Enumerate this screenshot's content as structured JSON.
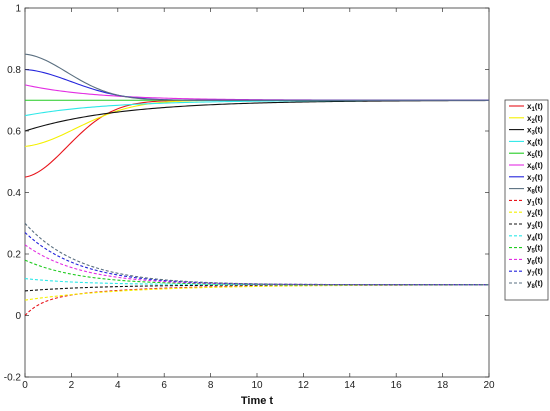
{
  "chart_data": {
    "type": "line",
    "title": "",
    "xlabel": "Time t",
    "ylabel": "",
    "xlim": [
      0,
      20
    ],
    "ylim": [
      -0.2,
      1
    ],
    "xticks": [
      "0",
      "2",
      "4",
      "6",
      "8",
      "10",
      "12",
      "14",
      "16",
      "18",
      "20"
    ],
    "yticks": [
      "-0.2",
      "0",
      "0.2",
      "0.4",
      "0.6",
      "0.8",
      "1"
    ],
    "grid": false,
    "legend_position": "right",
    "series": [
      {
        "label": "x",
        "sub": "1",
        "suffix": "(t)",
        "color": "#e8141b",
        "dash": false,
        "start": 0.45,
        "end": 0.7,
        "shape": "sigmoid",
        "k": 0.5
      },
      {
        "label": "x",
        "sub": "2",
        "suffix": "(t)",
        "color": "#f4f000",
        "dash": false,
        "start": 0.55,
        "end": 0.7,
        "shape": "sigmoid",
        "k": 0.4
      },
      {
        "label": "x",
        "sub": "3",
        "suffix": "(t)",
        "color": "#111111",
        "dash": false,
        "start": 0.6,
        "end": 0.7,
        "shape": "exp",
        "k": 0.24
      },
      {
        "label": "x",
        "sub": "4",
        "suffix": "(t)",
        "color": "#2ee8e8",
        "dash": false,
        "start": 0.65,
        "end": 0.7,
        "shape": "exp",
        "k": 0.28
      },
      {
        "label": "x",
        "sub": "5",
        "suffix": "(t)",
        "color": "#22cc22",
        "dash": false,
        "start": 0.7,
        "end": 0.7,
        "shape": "exp",
        "k": 0.3
      },
      {
        "label": "x",
        "sub": "6",
        "suffix": "(t)",
        "color": "#e32ee3",
        "dash": false,
        "start": 0.75,
        "end": 0.7,
        "shape": "exp",
        "k": 0.33
      },
      {
        "label": "x",
        "sub": "7",
        "suffix": "(t)",
        "color": "#2424dc",
        "dash": false,
        "start": 0.8,
        "end": 0.7,
        "shape": "sigmoid",
        "k": 0.45
      },
      {
        "label": "x",
        "sub": "8",
        "suffix": "(t)",
        "color": "#5a6f80",
        "dash": false,
        "start": 0.85,
        "end": 0.7,
        "shape": "sigmoid",
        "k": 0.5
      },
      {
        "label": "y",
        "sub": "1",
        "suffix": "(t)",
        "color": "#e8141b",
        "dash": true,
        "start": 0.0,
        "end": 0.1,
        "shape": "fast",
        "k": 1.4
      },
      {
        "label": "y",
        "sub": "2",
        "suffix": "(t)",
        "color": "#f4f000",
        "dash": true,
        "start": 0.05,
        "end": 0.1,
        "shape": "exp",
        "k": 0.22
      },
      {
        "label": "y",
        "sub": "3",
        "suffix": "(t)",
        "color": "#111111",
        "dash": true,
        "start": 0.08,
        "end": 0.1,
        "shape": "exp",
        "k": 0.3
      },
      {
        "label": "y",
        "sub": "4",
        "suffix": "(t)",
        "color": "#2ee8e8",
        "dash": true,
        "start": 0.12,
        "end": 0.1,
        "shape": "exp",
        "k": 0.4
      },
      {
        "label": "y",
        "sub": "5",
        "suffix": "(t)",
        "color": "#22cc22",
        "dash": true,
        "start": 0.18,
        "end": 0.1,
        "shape": "exp",
        "k": 0.42
      },
      {
        "label": "y",
        "sub": "6",
        "suffix": "(t)",
        "color": "#e32ee3",
        "dash": true,
        "start": 0.23,
        "end": 0.1,
        "shape": "exp",
        "k": 0.42
      },
      {
        "label": "y",
        "sub": "7",
        "suffix": "(t)",
        "color": "#2424dc",
        "dash": true,
        "start": 0.27,
        "end": 0.1,
        "shape": "exp",
        "k": 0.42
      },
      {
        "label": "y",
        "sub": "8",
        "suffix": "(t)",
        "color": "#5a6f80",
        "dash": true,
        "start": 0.3,
        "end": 0.1,
        "shape": "exp",
        "k": 0.42
      }
    ]
  }
}
